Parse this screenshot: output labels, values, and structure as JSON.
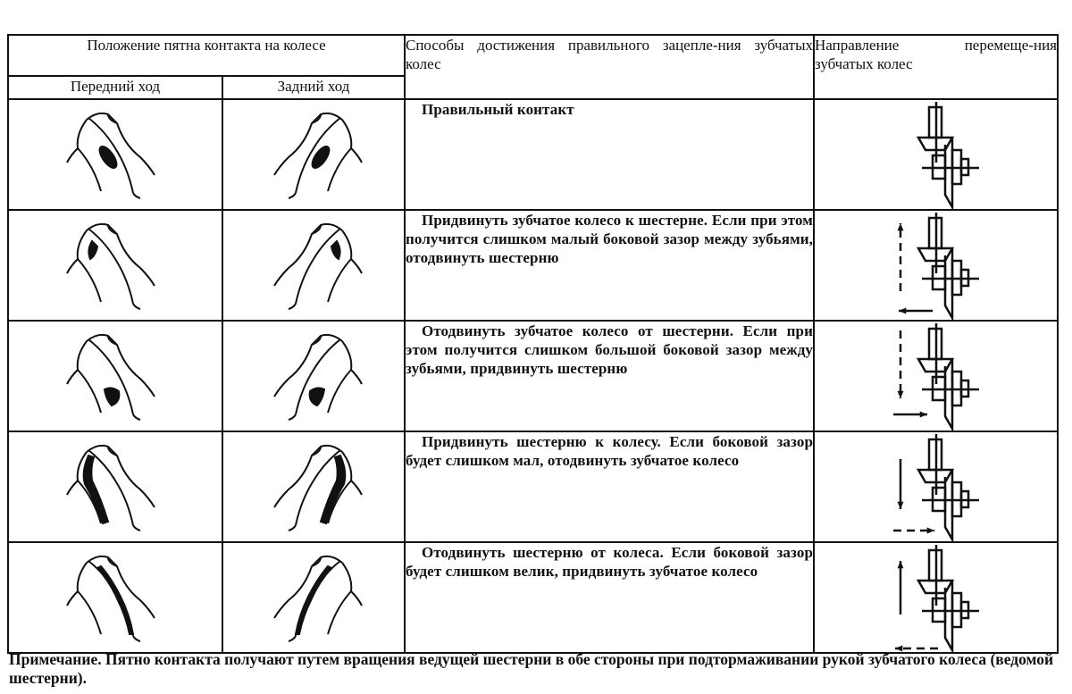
{
  "header": {
    "contact_position": "Положение пятна контакта  на колесе",
    "forward": "Передний ход",
    "reverse": "Задний ход",
    "methods": "Способы достижения правильного зацепле-ния зубчатых колес",
    "direction": "Направление перемеще-ния зубчатых колес"
  },
  "rows": [
    {
      "method": "Правильный контакт",
      "spot": "center-oval",
      "arrows": "none"
    },
    {
      "method": "Придвинуть зубчатое колесо к шестерне. Если при этом получится слишком малый боковой зазор между зубьями, отодвинуть шестерню",
      "spot": "top-edge",
      "arrows": "up-dashed-left-solid"
    },
    {
      "method": "Отодвинуть зубчатое колесо от шестерни. Если при этом получится слишком большой боковой зазор между зубьями, придвинуть шестерню",
      "spot": "bottom-edge",
      "arrows": "down-dashed-right-solid"
    },
    {
      "method": "Придвинуть шестерню к колесу. Если боковой зазор будет слишком мал, отодвинуть зубчатое колесо",
      "spot": "outer-flank",
      "arrows": "down-solid-right-dashed"
    },
    {
      "method": "Отодвинуть шестерню от колеса. Если боковой зазор будет слишком велик, придвинуть зубчатое колесо",
      "spot": "inner-flank",
      "arrows": "up-solid-left-dashed"
    }
  ],
  "note": {
    "label": "Примечание.",
    "text": " Пятно контакта получают путем вращения ведущей шестерни в обе стороны при подтормаживании рукой зубчатого колеса (ведомой шестерни)."
  }
}
